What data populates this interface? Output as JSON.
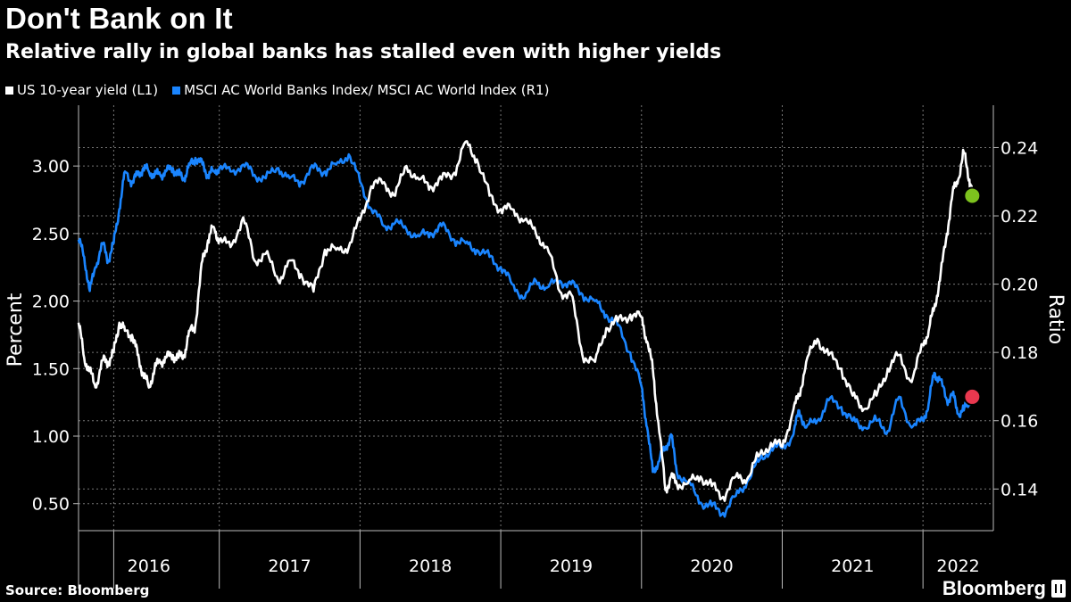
{
  "header": {
    "title": "Don't Bank on It",
    "subtitle": "Relative rally in global banks has stalled even with higher yields"
  },
  "legend": [
    {
      "label": "US 10-year yield (L1)",
      "color": "#ffffff"
    },
    {
      "label": "MSCI AC World Banks Index/ MSCI AC World Index (R1)",
      "color": "#1a85ff"
    }
  ],
  "footer": {
    "source": "Source: Bloomberg",
    "brand": "Bloomberg"
  },
  "chart_data": {
    "type": "line",
    "ylabel_left": "Percent",
    "ylabel_right": "Ratio",
    "left_ticks": [
      "3.00",
      "2.50",
      "2.00",
      "1.50",
      "1.00",
      "0.50"
    ],
    "left_tick_values": [
      3.0,
      2.5,
      2.0,
      1.5,
      1.0,
      0.5
    ],
    "left_range": [
      0.3,
      3.45
    ],
    "right_ticks": [
      "0.24",
      "0.22",
      "0.20",
      "0.18",
      "0.16",
      "0.14"
    ],
    "right_tick_values": [
      0.24,
      0.22,
      0.2,
      0.18,
      0.16,
      0.14
    ],
    "right_range": [
      0.1278,
      0.2524
    ],
    "x_range": [
      2016.0,
      2022.5
    ],
    "year_labels": [
      "2016",
      "2017",
      "2018",
      "2019",
      "2020",
      "2021",
      "2022"
    ],
    "year_boundaries": [
      2016.25,
      2017.0,
      2018.0,
      2019.0,
      2020.0,
      2021.0,
      2022.0,
      2022.5
    ],
    "series": [
      {
        "name": "US 10-year yield (L1)",
        "axis": "left",
        "color": "#ffffff",
        "x": [
          2016.0,
          2016.04,
          2016.08,
          2016.12,
          2016.17,
          2016.21,
          2016.25,
          2016.29,
          2016.33,
          2016.38,
          2016.42,
          2016.46,
          2016.5,
          2016.54,
          2016.58,
          2016.62,
          2016.67,
          2016.71,
          2016.75,
          2016.79,
          2016.83,
          2016.88,
          2016.92,
          2016.96,
          2017.0,
          2017.08,
          2017.17,
          2017.25,
          2017.33,
          2017.42,
          2017.5,
          2017.58,
          2017.67,
          2017.75,
          2017.83,
          2017.92,
          2018.0,
          2018.08,
          2018.17,
          2018.25,
          2018.33,
          2018.42,
          2018.5,
          2018.58,
          2018.67,
          2018.75,
          2018.83,
          2018.92,
          2019.0,
          2019.08,
          2019.17,
          2019.25,
          2019.33,
          2019.42,
          2019.5,
          2019.58,
          2019.67,
          2019.75,
          2019.83,
          2019.92,
          2020.0,
          2020.04,
          2020.08,
          2020.12,
          2020.17,
          2020.21,
          2020.25,
          2020.33,
          2020.42,
          2020.5,
          2020.58,
          2020.67,
          2020.75,
          2020.83,
          2020.92,
          2021.0,
          2021.08,
          2021.12,
          2021.17,
          2021.25,
          2021.33,
          2021.42,
          2021.5,
          2021.58,
          2021.67,
          2021.75,
          2021.83,
          2021.92,
          2022.0,
          2022.04,
          2022.08,
          2022.12,
          2022.17,
          2022.21,
          2022.25,
          2022.29,
          2022.33,
          2022.35
        ],
        "values": [
          1.84,
          1.58,
          1.48,
          1.36,
          1.56,
          1.55,
          1.62,
          1.84,
          1.78,
          1.75,
          1.6,
          1.46,
          1.36,
          1.5,
          1.55,
          1.58,
          1.6,
          1.58,
          1.6,
          1.78,
          1.82,
          2.3,
          2.45,
          2.55,
          2.45,
          2.4,
          2.62,
          2.3,
          2.35,
          2.15,
          2.3,
          2.2,
          2.07,
          2.38,
          2.38,
          2.4,
          2.6,
          2.85,
          2.88,
          2.78,
          3.0,
          2.9,
          2.85,
          2.9,
          2.95,
          3.18,
          3.05,
          2.78,
          2.68,
          2.68,
          2.6,
          2.5,
          2.4,
          2.07,
          2.05,
          1.6,
          1.55,
          1.8,
          1.85,
          1.9,
          1.88,
          1.7,
          1.5,
          1.1,
          0.6,
          0.7,
          0.65,
          0.65,
          0.7,
          0.63,
          0.55,
          0.7,
          0.68,
          0.85,
          0.95,
          0.92,
          1.2,
          1.3,
          1.55,
          1.72,
          1.6,
          1.5,
          1.3,
          1.2,
          1.3,
          1.5,
          1.6,
          1.4,
          1.68,
          1.78,
          1.95,
          2.15,
          2.5,
          2.8,
          2.9,
          3.1,
          2.9,
          2.78
        ]
      },
      {
        "name": "MSCI AC World Banks Index/ MSCI AC World Index (R1)",
        "axis": "right",
        "color": "#1a85ff",
        "x": [
          2016.0,
          2016.04,
          2016.08,
          2016.12,
          2016.17,
          2016.21,
          2016.25,
          2016.29,
          2016.33,
          2016.38,
          2016.42,
          2016.46,
          2016.5,
          2016.54,
          2016.58,
          2016.62,
          2016.67,
          2016.71,
          2016.75,
          2016.79,
          2016.83,
          2016.88,
          2016.92,
          2016.96,
          2017.0,
          2017.08,
          2017.17,
          2017.25,
          2017.33,
          2017.42,
          2017.5,
          2017.58,
          2017.67,
          2017.75,
          2017.83,
          2017.92,
          2018.0,
          2018.08,
          2018.17,
          2018.25,
          2018.33,
          2018.42,
          2018.5,
          2018.58,
          2018.67,
          2018.75,
          2018.83,
          2018.92,
          2019.0,
          2019.08,
          2019.17,
          2019.25,
          2019.33,
          2019.42,
          2019.5,
          2019.58,
          2019.67,
          2019.75,
          2019.83,
          2019.92,
          2020.0,
          2020.04,
          2020.08,
          2020.12,
          2020.17,
          2020.21,
          2020.25,
          2020.33,
          2020.42,
          2020.5,
          2020.58,
          2020.67,
          2020.75,
          2020.83,
          2020.92,
          2021.0,
          2021.08,
          2021.12,
          2021.17,
          2021.25,
          2021.33,
          2021.42,
          2021.5,
          2021.58,
          2021.67,
          2021.75,
          2021.83,
          2021.92,
          2022.0,
          2022.04,
          2022.08,
          2022.12,
          2022.17,
          2022.21,
          2022.25,
          2022.29,
          2022.33,
          2022.35
        ],
        "values": [
          0.213,
          0.208,
          0.198,
          0.205,
          0.212,
          0.207,
          0.212,
          0.222,
          0.233,
          0.23,
          0.232,
          0.234,
          0.233,
          0.232,
          0.232,
          0.233,
          0.234,
          0.232,
          0.231,
          0.235,
          0.237,
          0.235,
          0.232,
          0.233,
          0.234,
          0.233,
          0.235,
          0.232,
          0.231,
          0.234,
          0.231,
          0.23,
          0.234,
          0.233,
          0.235,
          0.238,
          0.23,
          0.222,
          0.217,
          0.218,
          0.216,
          0.214,
          0.215,
          0.217,
          0.213,
          0.212,
          0.21,
          0.208,
          0.205,
          0.2,
          0.196,
          0.201,
          0.199,
          0.201,
          0.2,
          0.197,
          0.195,
          0.191,
          0.188,
          0.18,
          0.17,
          0.158,
          0.145,
          0.148,
          0.152,
          0.156,
          0.145,
          0.142,
          0.136,
          0.135,
          0.133,
          0.138,
          0.142,
          0.148,
          0.152,
          0.152,
          0.156,
          0.163,
          0.158,
          0.16,
          0.166,
          0.164,
          0.16,
          0.158,
          0.16,
          0.157,
          0.167,
          0.158,
          0.16,
          0.165,
          0.174,
          0.172,
          0.166,
          0.168,
          0.162,
          0.163,
          0.166,
          0.167
        ]
      }
    ],
    "end_markers": [
      {
        "series": "US 10-year yield (L1)",
        "color": "#7dc21e"
      },
      {
        "series": "MSCI AC World Banks Index/ MSCI AC World Index (R1)",
        "color": "#e8384f"
      }
    ]
  }
}
